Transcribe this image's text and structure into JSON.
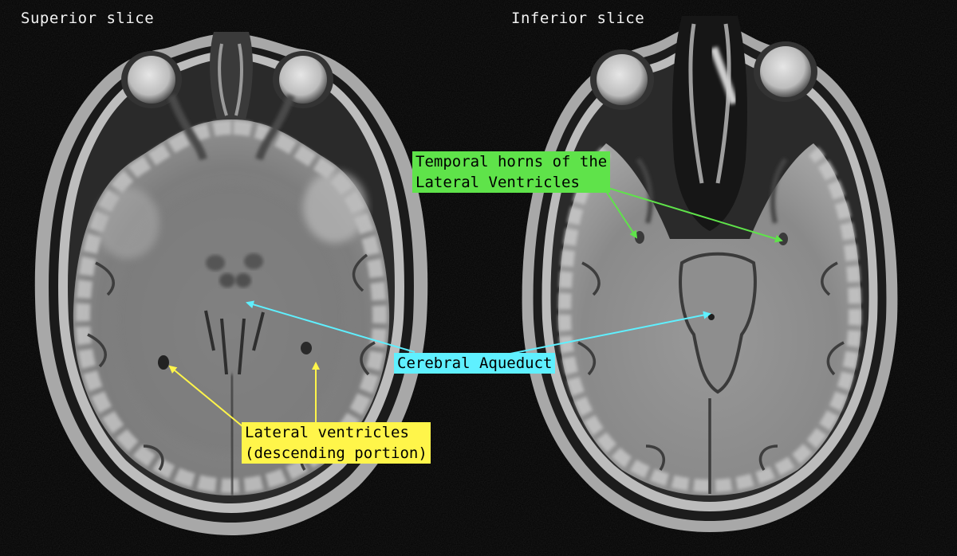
{
  "panels": {
    "left_title": "Superior slice",
    "right_title": "Inferior slice"
  },
  "annotations": {
    "temporal_horns": {
      "line1": "Temporal horns of the",
      "line2": "Lateral Ventricles",
      "color": "#5fe34a"
    },
    "aqueduct": {
      "text": "Cerebral Aqueduct",
      "color": "#5ff0ff"
    },
    "lateral_ventricles": {
      "line1": "Lateral ventricles",
      "line2": "(descending portion)",
      "color": "#fff54a"
    }
  }
}
